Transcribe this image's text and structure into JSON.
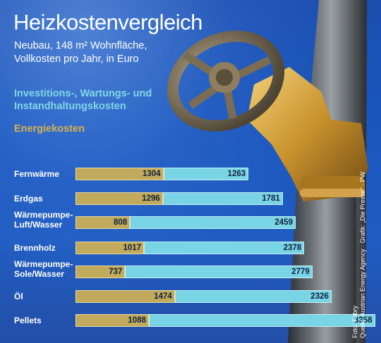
{
  "title": "Heizkostenvergleich",
  "subtitle_line1": "Neubau, 148 m² Wohnfläche,",
  "subtitle_line2": "Vollkosten pro Jahr, in Euro",
  "legend": {
    "investment": "Investitions-, Wartungs- und Instandhaltungskosten",
    "energy": "Energiekosten"
  },
  "credits": {
    "photo": "Foto: Fabry",
    "source": "Quelle: Austrian Energy Agency · Grafik: „Die Presse“ · PW"
  },
  "colors": {
    "energy": "#c2aa5c",
    "investment": "#79d4e5",
    "background": "#1b54b8"
  },
  "chart_data": {
    "type": "bar",
    "orientation": "horizontal",
    "stacked": true,
    "title": "Heizkostenvergleich",
    "categories": [
      "Fernwärme",
      "Erdgas",
      "Wärmepumpe-\nLuft/Wasser",
      "Brennholz",
      "Wärmepumpe-\nSole/Wasser",
      "Öl",
      "Pellets"
    ],
    "series": [
      {
        "name": "Energiekosten",
        "values": [
          1304,
          1296,
          808,
          1017,
          737,
          1474,
          1088
        ]
      },
      {
        "name": "Investitions-, Wartungs- und Instandhaltungskosten",
        "values": [
          1263,
          1781,
          2459,
          2378,
          2779,
          2326,
          3358
        ]
      }
    ],
    "grid": false,
    "legend_position": "top-left"
  }
}
